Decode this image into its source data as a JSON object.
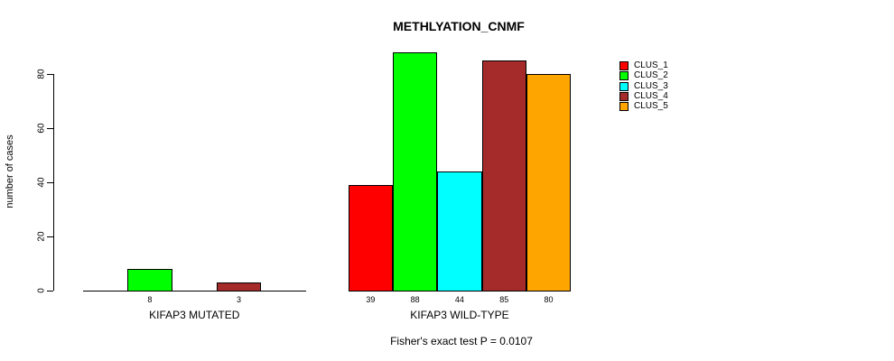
{
  "chart_data": {
    "type": "bar",
    "title": "METHLYATION_CNMF",
    "ylabel": "number of cases",
    "caption": "Fisher's exact test P = 0.0107",
    "yticks": [
      0,
      20,
      40,
      60,
      80
    ],
    "ylim": [
      0,
      88
    ],
    "grid": false,
    "legend_position": "top-right",
    "value_labels_shown": true,
    "series": [
      {
        "name": "CLUS_1",
        "color": "#ff0000"
      },
      {
        "name": "CLUS_2",
        "color": "#00ff00"
      },
      {
        "name": "CLUS_3",
        "color": "#00ffff"
      },
      {
        "name": "CLUS_4",
        "color": "#a52a2a"
      },
      {
        "name": "CLUS_5",
        "color": "#ffa500"
      }
    ],
    "groups": [
      {
        "label": "KIFAP3 MUTATED",
        "values": [
          0,
          8,
          0,
          3,
          0
        ]
      },
      {
        "label": "KIFAP3 WILD-TYPE",
        "values": [
          39,
          88,
          44,
          85,
          80
        ]
      }
    ]
  }
}
